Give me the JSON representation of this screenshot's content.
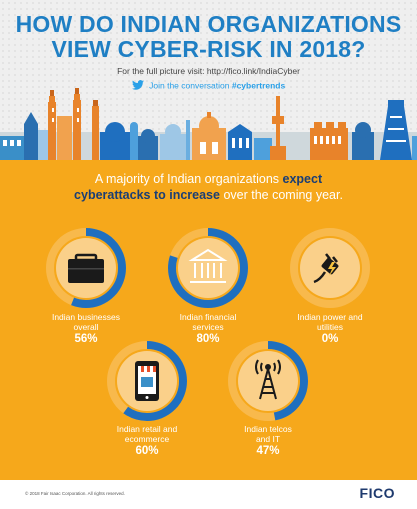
{
  "header": {
    "title_line1": "HOW DO INDIAN ORGANIZATIONS",
    "title_line2": "VIEW CYBER-RISK IN 2018?",
    "visit_text": "For the full picture visit: http://fico.link/IndiaCyber",
    "twitter_text": "Join the conversation",
    "hashtag": "#cybertrends"
  },
  "intro": {
    "part1": "A majority of Indian organizations ",
    "highlight1": "expect",
    "highlight2": "cyberattacks to increase",
    "part2": " over the coming year."
  },
  "colors": {
    "title": "#1f7fc4",
    "panel": "#f6a81b",
    "ring_filled": "#1f6fbf",
    "ring_track": "#f8b94c",
    "disc": "#fad08a",
    "highlight": "#1a3e75",
    "twitter": "#2aa0e8"
  },
  "chart_data": {
    "type": "donut",
    "categories": [
      "Indian businesses overall",
      "Indian financial services",
      "Indian power and utilities",
      "Indian retail and ecommerce",
      "Indian telcos and IT"
    ],
    "values": [
      56,
      80,
      0,
      60,
      47
    ],
    "unit": "%",
    "items": [
      {
        "label_line1": "Indian businesses",
        "label_line2": "overall",
        "pct": "56%",
        "value": 56,
        "icon": "briefcase-icon"
      },
      {
        "label_line1": "Indian financial",
        "label_line2": "services",
        "pct": "80%",
        "value": 80,
        "icon": "bank-icon"
      },
      {
        "label_line1": "Indian power and",
        "label_line2": "utilities",
        "pct": "0%",
        "value": 0,
        "icon": "plug-icon"
      },
      {
        "label_line1": "Indian retail and",
        "label_line2": "ecommerce",
        "pct": "60%",
        "value": 60,
        "icon": "shop-phone-icon"
      },
      {
        "label_line1": "Indian telcos",
        "label_line2": "and IT",
        "pct": "47%",
        "value": 47,
        "icon": "antenna-tower-icon"
      }
    ]
  },
  "footer": {
    "copyright": "© 2018 Fair Isaac Corporation. All rights reserved.",
    "logo": "FICO"
  }
}
